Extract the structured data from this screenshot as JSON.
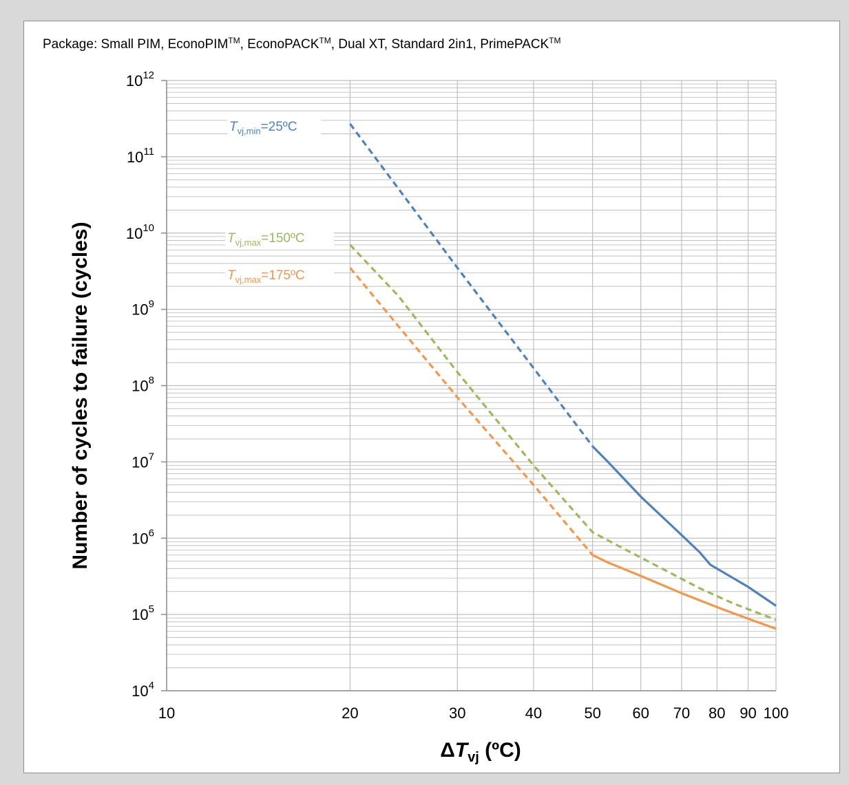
{
  "package_note": {
    "prefix": "Package: Small PIM, EconoPIM",
    "tm1": "TM",
    "mid1": ", EconoPACK",
    "tm2": "TM",
    "mid2": ", Dual XT, Standard 2in1, PrimePACK",
    "tm3": "TM"
  },
  "colors": {
    "tmin25": "#4f81bd",
    "tmax150": "#9bbb59",
    "tmax175": "#f79646",
    "grid": "#bfbfbf"
  },
  "chart_data": {
    "type": "line",
    "x_scale": "log",
    "y_scale": "log",
    "xlim": [
      10,
      100
    ],
    "ylim": [
      10000,
      1000000000000
    ],
    "x_ticks": [
      10,
      20,
      30,
      40,
      50,
      60,
      70,
      80,
      90,
      100
    ],
    "x_tick_labels": [
      "10",
      "20",
      "30",
      "40",
      "50",
      "60",
      "70",
      "80",
      "90",
      "100"
    ],
    "y_ticks": [
      {
        "base": "10",
        "exp": "4",
        "value": 10000
      },
      {
        "base": "10",
        "exp": "5",
        "value": 100000
      },
      {
        "base": "10",
        "exp": "6",
        "value": 1000000
      },
      {
        "base": "10",
        "exp": "7",
        "value": 10000000
      },
      {
        "base": "10",
        "exp": "8",
        "value": 100000000
      },
      {
        "base": "10",
        "exp": "9",
        "value": 1000000000
      },
      {
        "base": "10",
        "exp": "10",
        "value": 10000000000
      },
      {
        "base": "10",
        "exp": "11",
        "value": 100000000000
      },
      {
        "base": "10",
        "exp": "12",
        "value": 1000000000000
      }
    ],
    "xlabel": {
      "delta": "Δ",
      "var": "T",
      "sub": "vj",
      "unit": " (ºC)"
    },
    "ylabel": "Number of cycles to failure (cycles)",
    "grid": true,
    "series": [
      {
        "key": "tmin25",
        "label": {
          "var": "T",
          "sub": "vj,min",
          "rest": "=25ºC"
        },
        "segments": [
          {
            "style": "dashed",
            "points": [
              [
                20,
                270000000000
              ],
              [
                30,
                3500000000
              ],
              [
                40,
                170000000
              ],
              [
                50,
                16000000
              ]
            ]
          },
          {
            "style": "solid",
            "points": [
              [
                50,
                16000000
              ],
              [
                53,
                10000000
              ],
              [
                60,
                3500000
              ],
              [
                70,
                1100000
              ],
              [
                75,
                650000
              ],
              [
                78,
                450000
              ],
              [
                90,
                230000
              ],
              [
                100,
                130000
              ]
            ]
          }
        ]
      },
      {
        "key": "tmax150",
        "label": {
          "var": "T",
          "sub": "vj,max",
          "rest": "=150ºC"
        },
        "segments": [
          {
            "style": "dashed",
            "points": [
              [
                20,
                7000000000
              ],
              [
                24,
                1500000000
              ],
              [
                30,
                150000000
              ],
              [
                40,
                9000000
              ],
              [
                50,
                1200000
              ],
              [
                55,
                800000
              ],
              [
                65,
                400000
              ],
              [
                75,
                220000
              ],
              [
                85,
                140000
              ],
              [
                100,
                85000
              ]
            ]
          }
        ]
      },
      {
        "key": "tmax175",
        "label": {
          "var": "T",
          "sub": "vj,max",
          "rest": "=175ºC"
        },
        "segments": [
          {
            "style": "dashed",
            "points": [
              [
                20,
                3500000000
              ],
              [
                30,
                70000000
              ],
              [
                40,
                5000000
              ],
              [
                50,
                600000
              ]
            ]
          },
          {
            "style": "solid",
            "points": [
              [
                50,
                600000
              ],
              [
                53,
                480000
              ],
              [
                60,
                320000
              ],
              [
                70,
                190000
              ],
              [
                80,
                125000
              ],
              [
                90,
                88000
              ],
              [
                100,
                65000
              ]
            ]
          }
        ]
      }
    ]
  }
}
